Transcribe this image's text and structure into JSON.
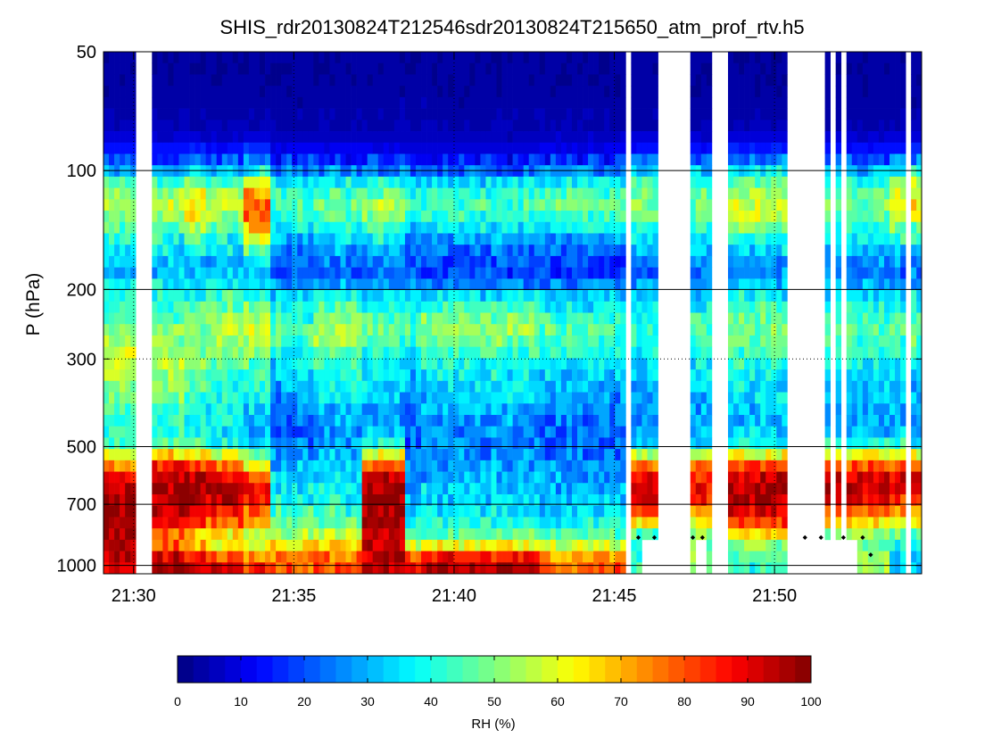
{
  "chart_data": {
    "type": "heatmap",
    "title": "SHIS_rdr20130824T212546sdr20130824T215650_atm_prof_rtv.h5",
    "xlabel": "",
    "ylabel": "P (hPa)",
    "x_unit": "minutes since 21:00 UTC",
    "xlim": [
      29.06,
      54.59
    ],
    "x_ticks": [
      30,
      35,
      40,
      45,
      50
    ],
    "x_tick_labels": [
      "21:30",
      "21:35",
      "21:40",
      "21:45",
      "21:50"
    ],
    "y_scale": "log",
    "y_direction": "reverse",
    "ylim": [
      50,
      1050
    ],
    "y_ticks": [
      50,
      100,
      200,
      300,
      500,
      700,
      1000
    ],
    "y_tick_labels": [
      "50",
      "100",
      "200",
      "300",
      "500",
      "700",
      "1000"
    ],
    "grid": {
      "solid_horizontal": [
        100,
        200,
        500,
        700,
        1000
      ],
      "dotted_horizontal": [
        300
      ],
      "dotted_vertical": [
        30,
        35,
        40,
        45,
        50
      ]
    },
    "colormap": "jet",
    "colorbar": {
      "label": "RH (%)",
      "range": [
        0,
        100
      ],
      "levels": 40,
      "ticks": [
        0,
        10,
        20,
        30,
        40,
        50,
        60,
        70,
        80,
        90,
        100
      ],
      "tick_labels": [
        "0",
        "10",
        "20",
        "30",
        "40",
        "50",
        "60",
        "70",
        "80",
        "90",
        "100"
      ],
      "orientation": "horizontal"
    },
    "column_width_min": 0.168,
    "missing_columns": [
      [
        30.0,
        30.5
      ],
      [
        45.35,
        45.6
      ],
      [
        46.35,
        46.45
      ],
      [
        46.6,
        47.4
      ],
      [
        48.05,
        48.5
      ],
      [
        50.35,
        51.55
      ],
      [
        51.8,
        51.9
      ],
      [
        52.1,
        52.25
      ],
      [
        53.35,
        53.45
      ],
      [
        54.1,
        54.3
      ]
    ],
    "low_level_gaps": [
      {
        "x": [
          45.85,
          46.3
        ],
        "p_above": 850
      },
      {
        "x": [
          47.5,
          47.95
        ],
        "p_above": 850
      },
      {
        "x": [
          51.55,
          52.6
        ],
        "p_above": 850
      }
    ],
    "markers": {
      "symbol": "diamond",
      "points": [
        [
          45.75,
          850
        ],
        [
          46.25,
          850
        ],
        [
          47.45,
          850
        ],
        [
          47.75,
          850
        ],
        [
          50.95,
          850
        ],
        [
          51.45,
          850
        ],
        [
          52.15,
          850
        ],
        [
          52.75,
          850
        ],
        [
          53.0,
          940
        ]
      ]
    },
    "profile_levels_hPa": [
      50,
      60,
      70,
      80,
      90,
      100,
      110,
      125,
      140,
      160,
      180,
      200,
      225,
      250,
      275,
      300,
      350,
      400,
      450,
      500,
      550,
      600,
      650,
      700,
      750,
      800,
      850,
      900,
      950,
      1000
    ],
    "rh_profiles": [
      {
        "regime": "moist_boundary_layer",
        "x": [
          29.06,
          30.0
        ],
        "rh": [
          3,
          3,
          4,
          6,
          15,
          30,
          50,
          55,
          45,
          35,
          30,
          40,
          45,
          50,
          55,
          60,
          50,
          45,
          40,
          45,
          70,
          90,
          95,
          98,
          98,
          97,
          98,
          95,
          93,
          90
        ]
      },
      {
        "regime": "moist_boundary_layer",
        "x": [
          30.5,
          31.6
        ],
        "rh": [
          3,
          3,
          4,
          6,
          15,
          30,
          48,
          58,
          45,
          35,
          30,
          40,
          45,
          50,
          52,
          55,
          50,
          45,
          40,
          50,
          80,
          95,
          98,
          97,
          95,
          85,
          75,
          80,
          90,
          95
        ]
      },
      {
        "regime": "upper_moist_peak",
        "x": [
          31.6,
          32.3
        ],
        "rh": [
          3,
          3,
          4,
          6,
          18,
          35,
          55,
          68,
          55,
          35,
          28,
          38,
          45,
          50,
          52,
          50,
          45,
          40,
          38,
          48,
          80,
          95,
          98,
          96,
          92,
          80,
          65,
          70,
          85,
          95
        ]
      },
      {
        "regime": "mid_tropo_moist",
        "x": [
          32.3,
          33.4
        ],
        "rh": [
          3,
          3,
          4,
          6,
          15,
          30,
          50,
          55,
          45,
          35,
          30,
          40,
          48,
          55,
          52,
          45,
          40,
          38,
          35,
          40,
          75,
          92,
          96,
          92,
          85,
          75,
          60,
          65,
          80,
          92
        ]
      },
      {
        "regime": "upper_moist_peak",
        "x": [
          33.4,
          34.2
        ],
        "rh": [
          3,
          3,
          4,
          6,
          20,
          40,
          65,
          80,
          70,
          45,
          35,
          40,
          50,
          58,
          55,
          48,
          40,
          35,
          30,
          35,
          60,
          80,
          88,
          85,
          75,
          65,
          55,
          60,
          75,
          85
        ]
      },
      {
        "regime": "dry_mid_levels",
        "x": [
          34.2,
          35.6
        ],
        "rh": [
          3,
          3,
          4,
          5,
          12,
          25,
          40,
          45,
          35,
          25,
          20,
          30,
          38,
          45,
          42,
          35,
          30,
          25,
          22,
          25,
          30,
          35,
          38,
          40,
          45,
          50,
          55,
          65,
          75,
          80
        ]
      },
      {
        "regime": "mid_tropo_moist",
        "x": [
          35.6,
          37.2
        ],
        "rh": [
          3,
          3,
          4,
          5,
          12,
          25,
          42,
          48,
          38,
          28,
          22,
          35,
          48,
          55,
          52,
          45,
          38,
          32,
          28,
          28,
          32,
          35,
          38,
          40,
          45,
          52,
          58,
          68,
          78,
          82
        ]
      },
      {
        "regime": "moist_boundary_layer",
        "x": [
          37.2,
          38.5
        ],
        "rh": [
          3,
          3,
          4,
          5,
          12,
          25,
          45,
          55,
          45,
          30,
          22,
          30,
          40,
          48,
          45,
          40,
          35,
          30,
          28,
          40,
          78,
          95,
          98,
          97,
          96,
          95,
          96,
          95,
          94,
          93
        ]
      },
      {
        "regime": "dry_mid_levels",
        "x": [
          38.5,
          39.0
        ],
        "rh": [
          3,
          3,
          4,
          5,
          10,
          22,
          38,
          42,
          32,
          22,
          18,
          28,
          38,
          45,
          42,
          35,
          30,
          25,
          22,
          22,
          25,
          28,
          30,
          32,
          35,
          40,
          45,
          60,
          78,
          85
        ]
      },
      {
        "regime": "saturated_surface",
        "x": [
          39.0,
          42.7
        ],
        "rh": [
          3,
          3,
          4,
          5,
          10,
          22,
          40,
          45,
          35,
          22,
          18,
          30,
          45,
          52,
          48,
          40,
          35,
          30,
          26,
          26,
          28,
          30,
          32,
          34,
          38,
          42,
          50,
          65,
          88,
          96
        ]
      },
      {
        "regime": "dry_mid_levels",
        "x": [
          42.7,
          45.35
        ],
        "rh": [
          3,
          3,
          4,
          5,
          12,
          25,
          42,
          48,
          35,
          22,
          18,
          28,
          38,
          45,
          42,
          35,
          30,
          26,
          22,
          22,
          25,
          28,
          30,
          32,
          35,
          40,
          48,
          60,
          72,
          78
        ]
      },
      {
        "regime": "moist_boundary_layer",
        "x": [
          45.6,
          46.35
        ],
        "rh": [
          3,
          3,
          4,
          6,
          15,
          30,
          48,
          52,
          42,
          30,
          22,
          30,
          38,
          42,
          40,
          35,
          30,
          28,
          25,
          35,
          75,
          90,
          92,
          88,
          80,
          55,
          40,
          38,
          40,
          45
        ]
      },
      {
        "regime": "moist_boundary_layer",
        "x": [
          47.4,
          48.05
        ],
        "rh": [
          3,
          3,
          4,
          6,
          15,
          30,
          45,
          50,
          40,
          30,
          25,
          32,
          40,
          45,
          42,
          38,
          33,
          30,
          28,
          35,
          70,
          85,
          88,
          82,
          70,
          60,
          50,
          48,
          50,
          55
        ]
      },
      {
        "regime": "moist_boundary_layer",
        "x": [
          48.5,
          50.35
        ],
        "rh": [
          3,
          3,
          4,
          6,
          18,
          35,
          52,
          60,
          48,
          32,
          25,
          35,
          45,
          50,
          48,
          42,
          36,
          32,
          30,
          42,
          80,
          95,
          97,
          95,
          90,
          78,
          60,
          50,
          45,
          42
        ]
      },
      {
        "regime": "moist_boundary_layer",
        "x": [
          51.55,
          53.6
        ],
        "rh": [
          3,
          3,
          4,
          6,
          15,
          30,
          45,
          50,
          40,
          30,
          24,
          32,
          40,
          46,
          44,
          38,
          33,
          30,
          28,
          45,
          78,
          92,
          95,
          88,
          75,
          60,
          48,
          45,
          50,
          55
        ]
      },
      {
        "regime": "upper_moist_peak",
        "x": [
          53.6,
          54.59
        ],
        "rh": [
          3,
          3,
          4,
          6,
          18,
          38,
          58,
          65,
          50,
          32,
          24,
          32,
          40,
          46,
          44,
          38,
          33,
          30,
          28,
          42,
          75,
          88,
          90,
          82,
          70,
          55,
          45,
          38,
          30,
          28
        ]
      }
    ]
  }
}
